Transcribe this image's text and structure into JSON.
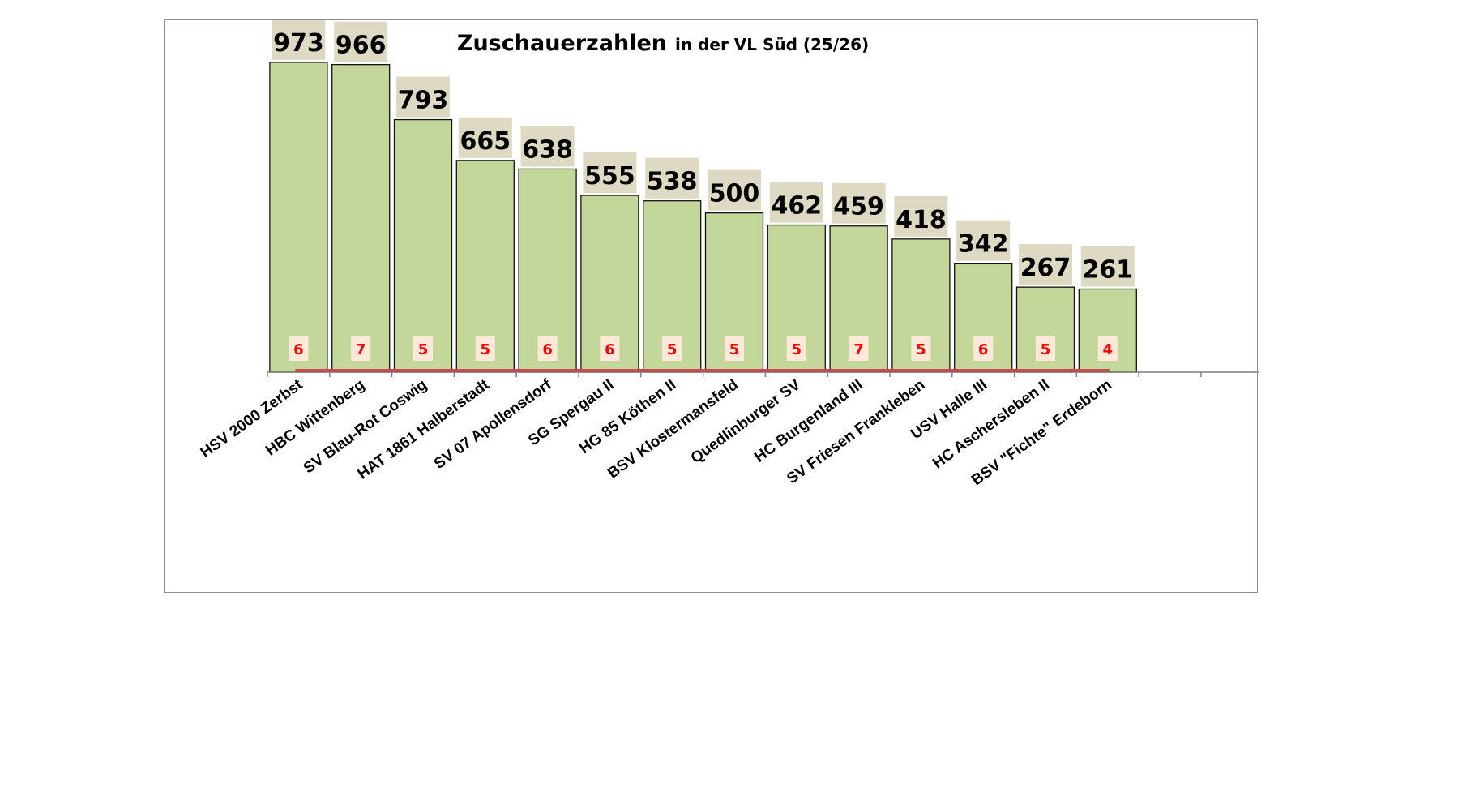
{
  "chart_data": {
    "type": "bar",
    "title": "Zuschauerzahlen",
    "subtitle": "in der VL Süd (25/26)",
    "categories": [
      "HSV 2000 Zerbst",
      "HBC Wittenberg",
      "SV Blau-Rot Coswig",
      "HAT 1861 Halberstadt",
      "SV 07 Apollensdorf",
      "SG Spergau II",
      "HG 85 Köthen II",
      "BSV Klostermansfeld",
      "Quedlinburger SV",
      "HC Burgenland III",
      "SV Friesen Frankleben",
      "USV Halle III",
      "HC Aschersleben II",
      "BSV \"Fichte\" Erdeborn"
    ],
    "series": [
      {
        "values": [
          973,
          966,
          793,
          665,
          638,
          555,
          538,
          500,
          462,
          459,
          418,
          342,
          267,
          261
        ]
      },
      {
        "values": [
          6,
          7,
          5,
          5,
          6,
          6,
          5,
          5,
          5,
          7,
          5,
          6,
          5,
          4
        ]
      }
    ],
    "ylim": [
      0,
      1100
    ],
    "xlabel": "",
    "ylabel": "",
    "grid": false,
    "legend": "none",
    "colors": {
      "bar_fill": "#c4d79b",
      "bar_stroke": "#111111",
      "value_label_bg": "#ddd9c3",
      "games_label_bg": "#fde9d9",
      "games_label_text": "#ff0000",
      "games_line": "#c0504d"
    }
  }
}
